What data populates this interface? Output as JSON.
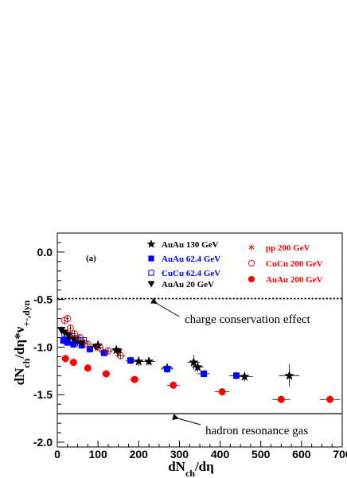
{
  "chart_data": {
    "type": "scatter",
    "panel_label": "(a)",
    "xlabel": {
      "main": "dN",
      "sub": "ch",
      "tail": "/dη"
    },
    "ylabel": {
      "main": "dN",
      "sub1": "ch",
      "mid": "/dη*ν",
      "sub2": "+-,dyn"
    },
    "xlim": [
      0,
      700
    ],
    "ylim": [
      -2.05,
      0.2
    ],
    "x_ticks": [
      0,
      100,
      200,
      300,
      400,
      500,
      600,
      700
    ],
    "x_tick_labels": [
      "0",
      "100",
      "200",
      "300",
      "400",
      "500",
      "600",
      "700"
    ],
    "y_ticks": [
      0.0,
      -0.5,
      -1.0,
      -1.5,
      -2.0
    ],
    "y_tick_labels": [
      "0.0",
      "-0.5",
      "-1.0",
      "-1.5",
      "-2.0"
    ],
    "reference_lines": [
      {
        "name": "charge conservation effect",
        "y": -0.49,
        "style": "dotted"
      },
      {
        "name": "hadron resonance gas",
        "y": -1.7,
        "style": "solid"
      }
    ],
    "annotations": [
      {
        "text": "charge conservation effect",
        "ref": 0
      },
      {
        "text": "hadron resonance gas",
        "ref": 1
      }
    ],
    "series": [
      {
        "name": "AuAu 130 GeV",
        "marker": "star",
        "color": "#000000",
        "points": [
          [
            25,
            -0.92
          ],
          [
            50,
            -0.94
          ],
          [
            100,
            -0.98
          ],
          [
            145,
            -1.03
          ],
          [
            200,
            -1.15
          ],
          [
            225,
            -1.15
          ],
          [
            270,
            -1.22
          ],
          [
            335,
            -1.16
          ],
          [
            345,
            -1.21
          ],
          [
            460,
            -1.31
          ],
          [
            570,
            -1.3
          ]
        ],
        "xerr": [
          5,
          8,
          10,
          10,
          12,
          15,
          15,
          15,
          15,
          20,
          25
        ],
        "yerr": [
          0.05,
          0.05,
          0.05,
          0.04,
          0.05,
          0.04,
          0.05,
          0.08,
          0.05,
          0.05,
          0.12
        ]
      },
      {
        "name": "AuAu 62.4 GeV",
        "marker": "square-filled",
        "color": "#0000ff",
        "points": [
          [
            15,
            -0.93
          ],
          [
            25,
            -0.95
          ],
          [
            40,
            -0.97
          ],
          [
            60,
            -0.98
          ],
          [
            80,
            -1.02
          ],
          [
            115,
            -1.06
          ],
          [
            180,
            -1.14
          ],
          [
            270,
            -1.23
          ],
          [
            360,
            -1.28
          ],
          [
            440,
            -1.3
          ]
        ],
        "xerr": [
          3,
          4,
          5,
          6,
          8,
          10,
          12,
          15,
          15,
          18
        ],
        "yerr": [
          0.04,
          0.04,
          0.04,
          0.04,
          0.04,
          0.04,
          0.04,
          0.04,
          0.04,
          0.04
        ]
      },
      {
        "name": "CuCu 62.4 GeV",
        "marker": "square-open",
        "color": "#0000ff",
        "points": [
          [
            18,
            -0.86
          ],
          [
            30,
            -0.88
          ],
          [
            45,
            -0.91
          ],
          [
            65,
            -0.93
          ]
        ],
        "xerr": [
          3,
          4,
          5,
          6
        ],
        "yerr": [
          0.04,
          0.04,
          0.04,
          0.04
        ]
      },
      {
        "name": "AuAu 20 GeV",
        "marker": "triangle-down",
        "color": "#000000",
        "points": [
          [
            10,
            -0.82
          ],
          [
            18,
            -0.85
          ],
          [
            28,
            -0.88
          ],
          [
            40,
            -0.92
          ],
          [
            60,
            -0.96
          ],
          [
            95,
            -1.0
          ],
          [
            150,
            -1.05
          ]
        ],
        "xerr": [
          3,
          3,
          4,
          5,
          6,
          8,
          10
        ],
        "yerr": [
          0.04,
          0.04,
          0.04,
          0.04,
          0.04,
          0.04,
          0.05
        ]
      },
      {
        "name": "pp 200 GeV",
        "marker": "asterisk",
        "color": "#ff0000",
        "points": [],
        "xerr": [],
        "yerr": []
      },
      {
        "name": "CuCu 200 GeV",
        "marker": "circle-open",
        "color": "#ff0000",
        "points": [
          [
            18,
            -0.72
          ],
          [
            25,
            -0.7
          ],
          [
            32,
            -0.8
          ],
          [
            42,
            -0.86
          ],
          [
            55,
            -0.9
          ],
          [
            75,
            -0.97
          ],
          [
            105,
            -1.01
          ],
          [
            125,
            -1.04
          ],
          [
            155,
            -1.09
          ]
        ],
        "xerr": [
          3,
          3,
          4,
          4,
          5,
          6,
          8,
          10,
          12
        ],
        "yerr": [
          0.04,
          0.04,
          0.04,
          0.04,
          0.04,
          0.04,
          0.04,
          0.04,
          0.04
        ]
      },
      {
        "name": "AuAu 200 GeV",
        "marker": "circle-filled",
        "color": "#ff0000",
        "points": [
          [
            20,
            -1.12
          ],
          [
            40,
            -1.16
          ],
          [
            75,
            -1.22
          ],
          [
            120,
            -1.28
          ],
          [
            190,
            -1.34
          ],
          [
            285,
            -1.4
          ],
          [
            405,
            -1.47
          ],
          [
            550,
            -1.55
          ],
          [
            670,
            -1.55
          ]
        ],
        "xerr": [
          5,
          6,
          8,
          10,
          12,
          15,
          18,
          22,
          25
        ],
        "yerr": [
          0.04,
          0.04,
          0.04,
          0.04,
          0.04,
          0.04,
          0.04,
          0.04,
          0.04
        ]
      }
    ]
  }
}
